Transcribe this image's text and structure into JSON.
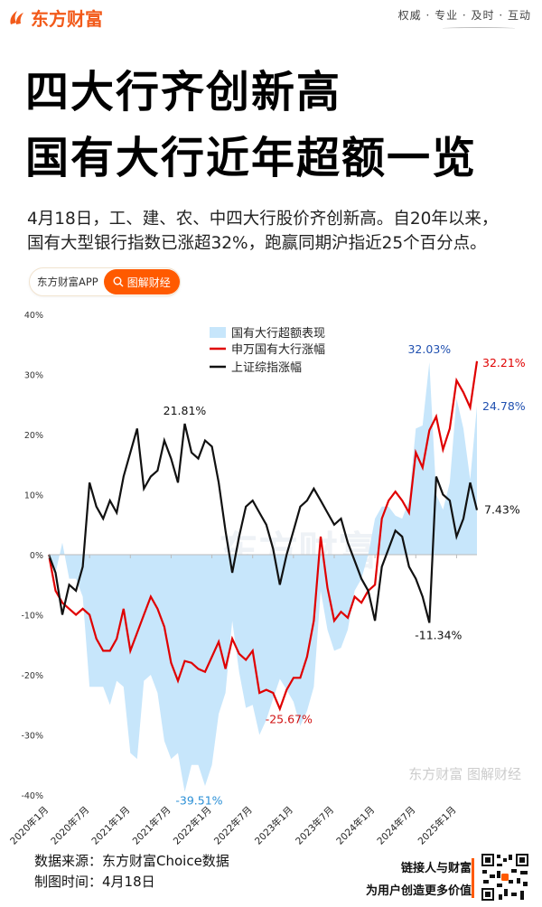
{
  "header": {
    "brand": "东方财富",
    "slogan": "权威 · 专业 · 及时 · 互动"
  },
  "title": {
    "line1": "四大行齐创新高",
    "line2": "国有大行近年超额一览"
  },
  "subtitle": {
    "line1": "4月18日，工、建、农、中四大行股价齐创新高。自20年以来，",
    "line2": "国有大型银行指数已涨超32%，跑赢同期沪指近25个百分点。"
  },
  "pill": {
    "app_label": "东方财富APP",
    "button_label": "图解财经",
    "button_icon": "search-icon",
    "accent": "#ff5a00"
  },
  "watermark": "东方财富 图解财经",
  "chart_data": {
    "type": "line",
    "title": "",
    "xlabel": "",
    "ylabel": "",
    "ylim": [
      -40,
      40
    ],
    "yticks": [
      "40%",
      "30%",
      "20%",
      "10%",
      "0%",
      "-10%",
      "-20%",
      "-30%",
      "-40%"
    ],
    "ytick_values": [
      40,
      30,
      20,
      10,
      0,
      -10,
      -20,
      -30,
      -40
    ],
    "xtick_labels": [
      "2020年1月",
      "2020年7月",
      "2021年1月",
      "2021年7月",
      "2022年1月",
      "2022年7月",
      "2023年1月",
      "2023年7月",
      "2024年1月",
      "2024年7月",
      "2025年1月"
    ],
    "x_start": "2020-01",
    "x_end": "2025-04",
    "x_frequency": "monthly (approx.)",
    "legend_position": "top-center",
    "grid": false,
    "series": [
      {
        "name": "国有大行超额表现",
        "type": "area",
        "color": "#c7e6fb",
        "values": [
          0,
          -3,
          2,
          -4,
          -4,
          -7,
          -22,
          -22,
          -22,
          -25,
          -21,
          -22,
          -33,
          -34,
          -21,
          -20,
          -23,
          -31,
          -34,
          -33,
          -39.51,
          -35,
          -35,
          -38.5,
          -35,
          -26.5,
          -23,
          -11,
          -19.5,
          -25.5,
          -25,
          -30,
          -27.5,
          -24,
          -20.67,
          -22.5,
          -24.5,
          -28.5,
          -26,
          -22,
          -6,
          -12.5,
          -16,
          -15.5,
          -12.5,
          -6,
          -4,
          0,
          6,
          8,
          8,
          6.5,
          6,
          9,
          21,
          21.5,
          32.03,
          10,
          7.5,
          12,
          26,
          21,
          12.5,
          24.78
        ]
      },
      {
        "name": "申万国有大行涨幅",
        "type": "line",
        "color": "#e00000",
        "values": [
          0,
          -6,
          -8,
          -9,
          -10,
          -9,
          -10,
          -14,
          -16,
          -16,
          -14,
          -9,
          -16,
          -13,
          -10,
          -7,
          -9,
          -12,
          -18,
          -21,
          -17.7,
          -18,
          -19,
          -19.5,
          -17,
          -14.5,
          -19,
          -14,
          -16.5,
          -17.5,
          -16,
          -23,
          -22.5,
          -23,
          -25.67,
          -22.5,
          -20.5,
          -20.5,
          -17,
          -11,
          3,
          -5.5,
          -11,
          -9.5,
          -10.5,
          -7,
          -8,
          -6,
          -5,
          6,
          9,
          10.5,
          9,
          7,
          17,
          14.5,
          20.69,
          23,
          17.5,
          21,
          29,
          27,
          24.5,
          32.21
        ]
      },
      {
        "name": "上证综指涨幅",
        "type": "line",
        "color": "#111111",
        "values": [
          0,
          -3,
          -10,
          -5,
          -6,
          -2,
          12,
          8,
          6,
          9,
          7,
          13,
          17,
          21,
          11,
          13,
          14,
          19,
          16,
          12,
          21.81,
          17,
          16,
          19,
          18,
          12,
          4,
          -3,
          3,
          8,
          9,
          7,
          5,
          1,
          -5,
          0,
          4,
          8,
          9,
          11,
          9,
          7,
          5,
          6,
          2,
          -1,
          -4,
          -6,
          -11,
          -2,
          1,
          4,
          3,
          -2,
          -4,
          -7,
          -11.34,
          13,
          10,
          9,
          3,
          6,
          12,
          7.43
        ]
      }
    ],
    "annotations": [
      {
        "text": "21.81%",
        "series": 2,
        "index": 20,
        "color": "#111111"
      },
      {
        "text": "-39.51%",
        "series": 0,
        "index": 20,
        "color": "#2a8fd6"
      },
      {
        "text": "-25.67%",
        "series": 1,
        "index": 34,
        "color": "#d01010"
      },
      {
        "text": "32.03%",
        "series": 0,
        "index": 56,
        "color": "#2050b0"
      },
      {
        "text": "-11.34%",
        "series": 2,
        "index": 56,
        "color": "#111111"
      },
      {
        "text": "32.21%",
        "series": 1,
        "index": 63,
        "color": "#e00000"
      },
      {
        "text": "24.78%",
        "series": 0,
        "index": 63,
        "color": "#2050b0"
      },
      {
        "text": "7.43%",
        "series": 2,
        "index": 63,
        "color": "#111111"
      }
    ]
  },
  "footer": {
    "source": "数据来源：东方财富Choice数据",
    "date": "制图时间：4月18日",
    "slogan_line1": "链接人与财富",
    "slogan_line2": "为用户创造更多价值",
    "qr_icon": "qr-code-icon"
  }
}
